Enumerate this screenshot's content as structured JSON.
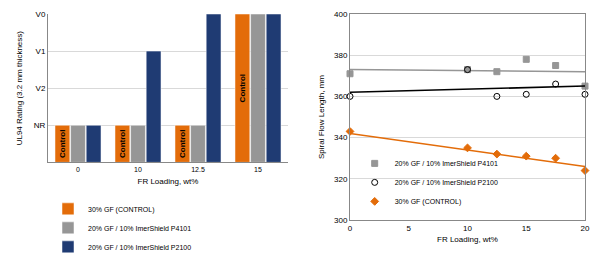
{
  "chart_data": [
    {
      "type": "bar",
      "x_label": "FR Loading, wt%",
      "y_label": "UL94 Rating (3.2 mm thickness)",
      "categories": [
        "0",
        "10",
        "12.5",
        "15"
      ],
      "series": [
        {
          "name": "30% GF (CONTROL)",
          "color": "#E36C09",
          "values": [
            1,
            1,
            1,
            4
          ]
        },
        {
          "name": "20% GF / 10% ImerShield P4101",
          "color": "#969696",
          "values": [
            1,
            1,
            1,
            4
          ]
        },
        {
          "name": "20% GF / 10% ImerShield P2100",
          "color": "#1F3B73",
          "values": [
            1,
            3,
            4,
            4
          ]
        }
      ],
      "ylim": [
        0,
        4
      ],
      "yticks": [
        {
          "value": 1,
          "label": "NR"
        },
        {
          "value": 2,
          "label": "V2"
        },
        {
          "value": 3,
          "label": "V1"
        },
        {
          "value": 4,
          "label": "V0"
        }
      ],
      "grid": true,
      "legend": "bottom-left",
      "annotations": [
        {
          "text": "Control",
          "series": "30% GF (CONTROL)"
        }
      ]
    },
    {
      "type": "scatter",
      "x_label": "FR Loading, wt%",
      "y_label": "Spiral Flow Length, mm",
      "series": [
        {
          "name": "20% GF / 10% ImerShield P4101",
          "color": "#969696",
          "marker": "square",
          "x": [
            0,
            10,
            12.5,
            15,
            17.5,
            20
          ],
          "values": [
            371,
            373,
            372,
            378,
            375,
            365
          ],
          "trend": {
            "x": [
              0,
              20
            ],
            "values": [
              373,
              372
            ]
          }
        },
        {
          "name": "20% GF / 10% ImerShield P2100",
          "color": "#000000",
          "marker": "circle-open",
          "x": [
            0,
            10,
            12.5,
            15,
            17.5,
            20
          ],
          "values": [
            360,
            373,
            360,
            361,
            366,
            361
          ],
          "trend": {
            "x": [
              0,
              20
            ],
            "values": [
              362,
              365
            ]
          }
        },
        {
          "name": "30% GF (CONTROL)",
          "color": "#E36C09",
          "marker": "diamond",
          "x": [
            0,
            10,
            12.5,
            15,
            17.5,
            20
          ],
          "values": [
            343,
            335,
            332,
            331,
            330,
            324
          ],
          "trend": {
            "x": [
              0,
              20
            ],
            "values": [
              342,
              326
            ]
          }
        }
      ],
      "xlim": [
        0,
        20
      ],
      "xticks": [
        0,
        5,
        10,
        15,
        20
      ],
      "ylim": [
        300,
        400
      ],
      "yticks": [
        300,
        320,
        340,
        360,
        380,
        400
      ],
      "grid": true,
      "legend": "bottom-left"
    }
  ]
}
